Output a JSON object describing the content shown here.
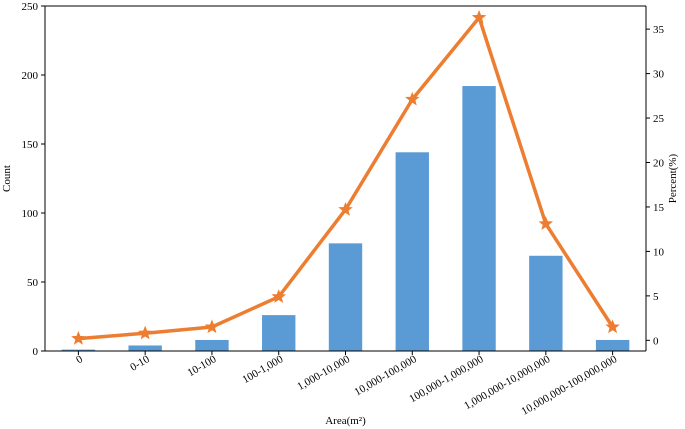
{
  "chart_data": {
    "type": "bar",
    "title": "",
    "xlabel": "Area(m²)",
    "ylabel": "Count",
    "ylabel_right": "Percent(%)",
    "ylim": [
      0,
      250
    ],
    "ylim_right": [
      -1.2,
      37.6
    ],
    "yticks": [
      0,
      50,
      100,
      150,
      200,
      250
    ],
    "yticks_right": [
      0,
      5,
      10,
      15,
      20,
      25,
      30,
      35
    ],
    "categories": [
      "0",
      "0-10",
      "10-100",
      "100-1,000",
      "1,000-10,000",
      "10,000-100,000",
      "100,000-1,000,000",
      "1,000,000-10,000,000",
      "10,000,000-100,000,000"
    ],
    "series": [
      {
        "type": "bar",
        "axis": "left",
        "color": "#5b9bd5",
        "values": [
          1,
          4,
          8,
          26,
          78,
          144,
          192,
          69,
          8
        ]
      },
      {
        "type": "line",
        "axis": "right",
        "marker": "star",
        "color": "#ed7d31",
        "values": [
          0.2,
          0.8,
          1.5,
          4.9,
          14.7,
          27.1,
          36.3,
          13.1,
          1.5
        ]
      }
    ],
    "grid": false,
    "legend": "none"
  }
}
